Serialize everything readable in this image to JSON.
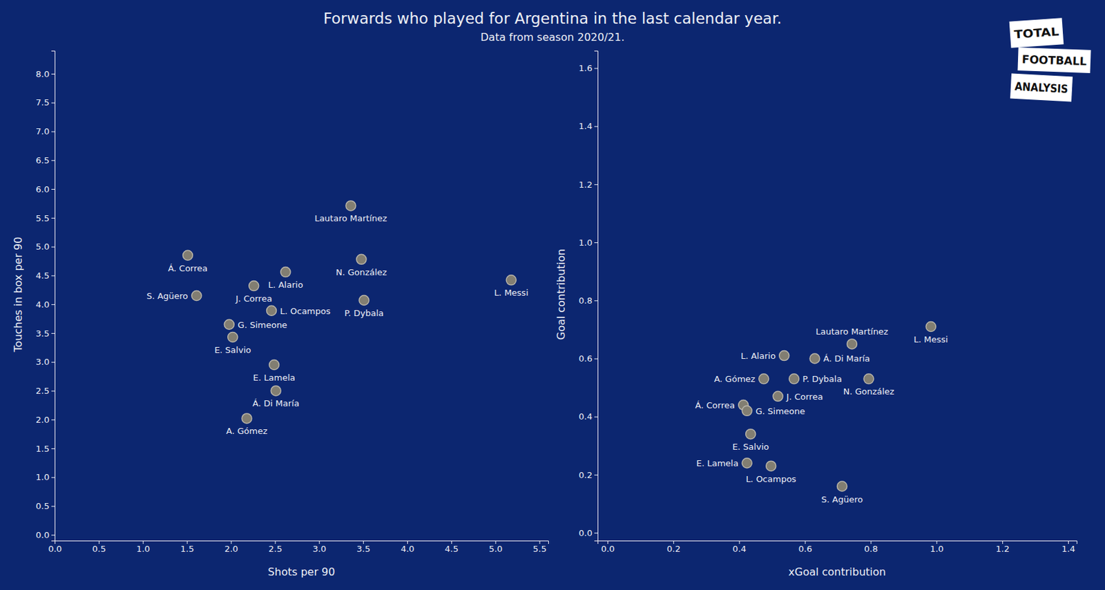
{
  "chart_data": [
    {
      "type": "scatter",
      "title": "Forwards who played for Argentina in the last calendar year.",
      "subtitle": "Data from season 2020/21.",
      "x_label": "Shots per 90",
      "y_label": "Touches in box per 90",
      "color": "#827e72",
      "grid": false,
      "labels": [
        "Á. Correa",
        "S. Agüero",
        "J. Correa",
        "L. Alario",
        "L. Ocampos",
        "G. Simeone",
        "E. Salvio",
        "E. Lamela",
        "Á. Di María",
        "A. Gómez",
        "Lautaro Martínez",
        "N. González",
        "P. Dybala",
        "L. Messi"
      ],
      "x": [
        1.51,
        1.61,
        2.26,
        2.62,
        2.46,
        1.98,
        2.02,
        2.49,
        2.51,
        2.18,
        3.36,
        3.48,
        3.51,
        5.18
      ],
      "values": [
        4.85,
        4.15,
        4.32,
        4.56,
        3.89,
        3.65,
        3.43,
        2.95,
        2.5,
        2.02,
        5.71,
        4.78,
        4.07,
        4.42
      ],
      "xlim": [
        0,
        5.6
      ],
      "ylim": [
        -0.1,
        8.4
      ],
      "xticks": [
        {
          "value": 0,
          "label": "0.0"
        },
        0.5,
        {
          "value": 1,
          "label": "1.0"
        },
        1.5,
        {
          "value": 2,
          "label": "2.0"
        },
        2.5,
        {
          "value": 3,
          "label": "3.0"
        },
        3.5,
        {
          "value": 4,
          "label": "4.0"
        },
        4.5,
        {
          "value": 5,
          "label": "5.0"
        },
        5.5
      ],
      "yticks": [
        {
          "value": 0,
          "label": "0.0"
        },
        0.5,
        {
          "value": 1,
          "label": "1.0"
        },
        1.5,
        {
          "value": 2,
          "label": "2.0"
        },
        2.5,
        {
          "value": 3,
          "label": "3.0"
        },
        3.5,
        {
          "value": 4,
          "label": "4.0"
        },
        4.5,
        {
          "value": 5,
          "label": "5.0"
        },
        5.5,
        {
          "value": 6,
          "label": "6.0"
        },
        6.5,
        {
          "value": 7,
          "label": "7.0"
        },
        7.5,
        {
          "value": 8,
          "label": "8.0"
        }
      ]
    },
    {
      "type": "scatter",
      "x_label": "xGoal contribution",
      "y_label": "Goal contribution",
      "color": "#827e72",
      "grid": false,
      "labels": [
        "Lautaro Martínez",
        "L. Messi",
        "L. Alario",
        "Á. Di María",
        "A. Gómez",
        "P. Dybala",
        "N. González",
        "J. Correa",
        "Á. Correa",
        "G. Simeone",
        "E. Salvio",
        "E. Lamela",
        "L. Ocampos",
        "S. Agüero"
      ],
      "x": [
        0.743,
        0.983,
        0.537,
        0.63,
        0.475,
        0.567,
        0.794,
        0.518,
        0.413,
        0.424,
        0.435,
        0.424,
        0.497,
        0.713
      ],
      "values": [
        0.65,
        0.71,
        0.61,
        0.6,
        0.53,
        0.53,
        0.53,
        0.47,
        0.44,
        0.42,
        0.34,
        0.24,
        0.23,
        0.16
      ],
      "xlim": [
        -0.03,
        1.426
      ],
      "ylim": [
        -0.027,
        1.66
      ],
      "xticks": [
        {
          "value": 0,
          "label": "0.0"
        },
        0.2,
        0.4,
        0.6,
        0.8,
        {
          "value": 1,
          "label": "1.0"
        },
        1.2,
        1.4
      ],
      "yticks": [
        {
          "value": 0,
          "label": "0.0"
        },
        0.2,
        0.4,
        0.6,
        0.8,
        {
          "value": 1,
          "label": "1.0"
        },
        1.2,
        1.4,
        1.6
      ]
    }
  ],
  "logo": [
    "TOTAL",
    "FOOTBALL",
    "ANALYSIS"
  ]
}
